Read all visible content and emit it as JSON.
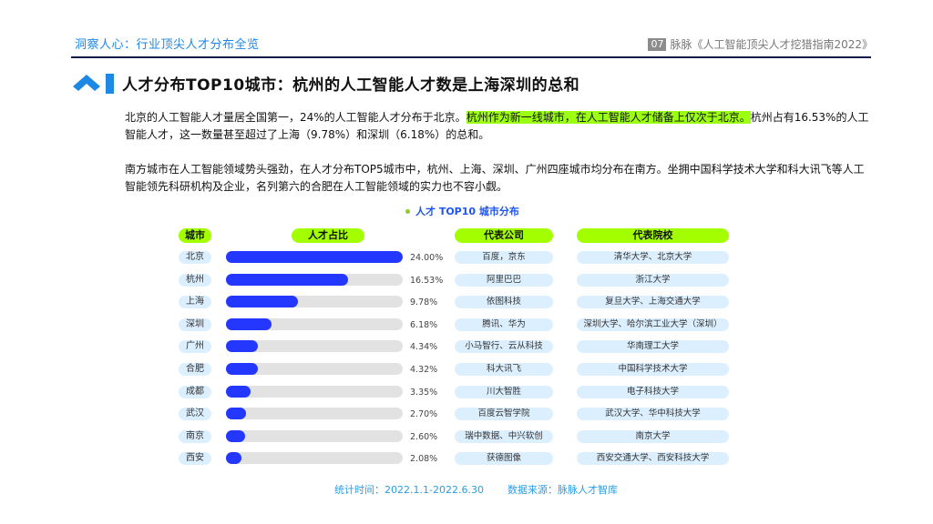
{
  "header": {
    "section_title": "洞察人心：行业顶尖人才分布全览",
    "page_number": "07",
    "report_title": "脉脉《人工智能顶尖人才挖猎指南2022》"
  },
  "title": "人才分布TOP10城市：杭州的人工智能人才数是上海深圳的总和",
  "paragraphs": {
    "p1_a": "北京的人工智能人才量居全国第一，24%的人工智能人才分布于北京。",
    "p1_highlight": "杭州作为新一线城市，在人工智能人才储备上仅次于北京。",
    "p1_b": "杭州占有16.53%的人工智能人才，这一数量甚至超过了上海（9.78%）和深圳（6.18%）的总和。",
    "p2": "南方城市在人工智能领域势头强劲，在人才分布TOP5城市中，杭州、上海、深圳、广州四座城市均分布在南方。坐拥中国科学技术大学和科大讯飞等人工智能领先科研机构及企业，名列第六的合肥在人工智能领域的实力也不容小觑。"
  },
  "colors": {
    "accent_blue": "#1e88e5",
    "bar_blue": "#2437ff",
    "highlight_green": "#a3ff00",
    "pill_light_blue": "#dcefff"
  },
  "table_headers": {
    "city": "城市",
    "ratio": "人才占比",
    "company": "代表公司",
    "university": "代表院校"
  },
  "chart_data": {
    "type": "bar",
    "title": "人才 TOP10 城市分布",
    "orientation": "horizontal",
    "xlabel": "",
    "ylabel": "",
    "ylim": [
      0,
      24
    ],
    "categories": [
      "北京",
      "杭州",
      "上海",
      "深圳",
      "广州",
      "合肥",
      "成都",
      "武汉",
      "南京",
      "西安"
    ],
    "values": [
      24.0,
      16.53,
      9.78,
      6.18,
      4.34,
      4.32,
      3.35,
      2.7,
      2.6,
      2.08
    ],
    "value_labels": [
      "24.00%",
      "16.53%",
      "9.78%",
      "6.18%",
      "4.34%",
      "4.32%",
      "3.35%",
      "2.70%",
      "2.60%",
      "2.08%"
    ],
    "companies": [
      "百度，京东",
      "阿里巴巴",
      "依图科技",
      "腾讯、华为",
      "小马智行、云从科技",
      "科大讯飞",
      "川大智胜",
      "百度云智学院",
      "瑞中数据、中兴软创",
      "获德图像"
    ],
    "universities": [
      "清华大学、北京大学",
      "浙江大学",
      "复旦大学、上海交通大学",
      "深圳大学、哈尔滨工业大学（深圳）",
      "华南理工大学",
      "中国科学技术大学",
      "电子科技大学",
      "武汉大学、华中科技大学",
      "南京大学",
      "西安交通大学、西安科技大学"
    ]
  },
  "rows": [
    {
      "city": "北京",
      "pct": "24.00%",
      "company": "百度，京东",
      "university": "清华大学、北京大学"
    },
    {
      "city": "杭州",
      "pct": "16.53%",
      "company": "阿里巴巴",
      "university": "浙江大学"
    },
    {
      "city": "上海",
      "pct": "9.78%",
      "company": "依图科技",
      "university": "复旦大学、上海交通大学"
    },
    {
      "city": "深圳",
      "pct": "6.18%",
      "company": "腾讯、华为",
      "university": "深圳大学、哈尔滨工业大学（深圳）"
    },
    {
      "city": "广州",
      "pct": "4.34%",
      "company": "小马智行、云从科技",
      "university": "华南理工大学"
    },
    {
      "city": "合肥",
      "pct": "4.32%",
      "company": "科大讯飞",
      "university": "中国科学技术大学"
    },
    {
      "city": "成都",
      "pct": "3.35%",
      "company": "川大智胜",
      "university": "电子科技大学"
    },
    {
      "city": "武汉",
      "pct": "2.70%",
      "company": "百度云智学院",
      "university": "武汉大学、华中科技大学"
    },
    {
      "city": "南京",
      "pct": "2.60%",
      "company": "瑞中数据、中兴软创",
      "university": "南京大学"
    },
    {
      "city": "西安",
      "pct": "2.08%",
      "company": "获德图像",
      "university": "西安交通大学、西安科技大学"
    }
  ],
  "footer": {
    "period": "统计时间：2022.1.1-2022.6.30",
    "source": "数据来源：脉脉人才智库"
  }
}
